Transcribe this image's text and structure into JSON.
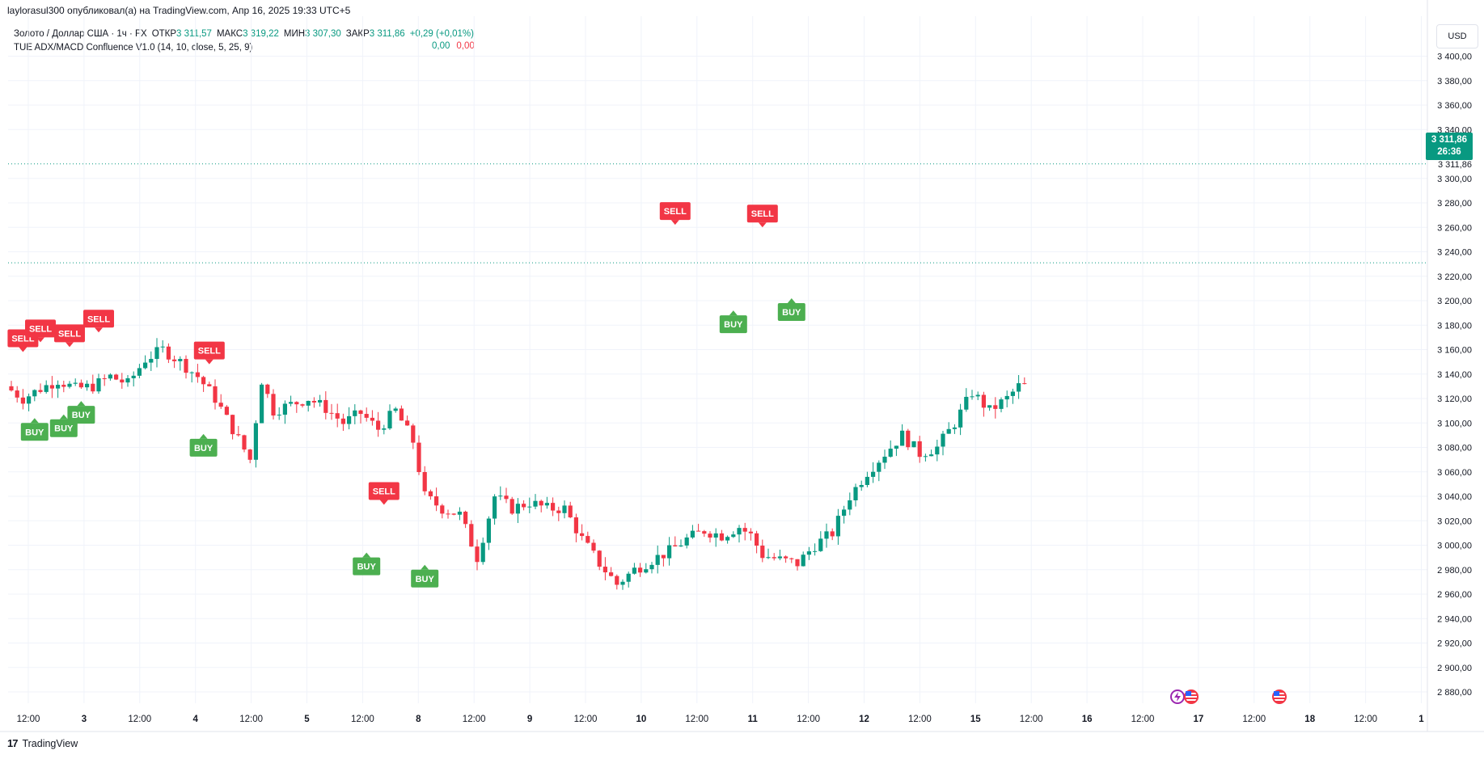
{
  "header": {
    "attribution": "laylorasul300 опубликовал(а) на TradingView.com, Апр 16, 2025 19:33 UTC+5"
  },
  "legend": {
    "symbol": "Золото / Доллар США · 1ч · FX",
    "open_label": "ОТКР",
    "open_value": "3 311,57",
    "high_label": "МАКС",
    "high_value": "3 319,22",
    "low_label": "МИН",
    "low_value": "3 307,30",
    "close_label": "ЗАКР",
    "close_value": "3 311,86",
    "change": "+0,29 (+0,01%)",
    "indicator": "TUE ADX/MACD Confluence V1.0 (14, 10, close, 5, 25, 9)",
    "indicator_val1": "0,00",
    "indicator_val2": "0,00"
  },
  "price_scale": {
    "currency": "USD",
    "last_price": "3 311,86",
    "countdown": "26:36"
  },
  "footer": {
    "brand": "TradingView"
  },
  "colors": {
    "up": "#089981",
    "down": "#f23645",
    "buy": "#4caf50",
    "sell": "#f23645",
    "grid": "#f0f3fa",
    "dotted_line": "#089981"
  },
  "icons": [
    "lightning-event-icon",
    "us-flag-event-icon"
  ],
  "chart_data": {
    "type": "candlestick",
    "symbol": "XAUUSD",
    "timeframe": "1h",
    "ylim": [
      2870,
      3420
    ],
    "y_ticks": [
      2880,
      2900,
      2920,
      2940,
      2960,
      2980,
      3000,
      3020,
      3040,
      3060,
      3080,
      3100,
      3120,
      3140,
      3160,
      3180,
      3200,
      3220,
      3240,
      3260,
      3280,
      3300,
      3340,
      3360,
      3380,
      3400
    ],
    "y_tick_labels": [
      "2 880,00",
      "2 900,00",
      "2 920,00",
      "2 940,00",
      "2 960,00",
      "2 980,00",
      "3 000,00",
      "3 020,00",
      "3 040,00",
      "3 060,00",
      "3 080,00",
      "3 100,00",
      "3 120,00",
      "3 140,00",
      "3 160,00",
      "3 180,00",
      "3 200,00",
      "3 220,00",
      "3 240,00",
      "3 260,00",
      "3 280,00",
      "3 300,00",
      "3 340,00",
      "3 360,00",
      "3 380,00",
      "3 400,00"
    ],
    "last_price_label": "3 311,86",
    "x_labels": [
      "12:00",
      "3",
      "12:00",
      "4",
      "12:00",
      "5",
      "12:00",
      "8",
      "12:00",
      "9",
      "12:00",
      "10",
      "12:00",
      "11",
      "12:00",
      "12",
      "12:00",
      "15",
      "12:00",
      "16",
      "12:00",
      "17",
      "12:00",
      "18",
      "12:00",
      "1"
    ],
    "x_label_bold": [
      false,
      true,
      false,
      true,
      false,
      true,
      false,
      true,
      false,
      true,
      false,
      true,
      false,
      true,
      false,
      true,
      false,
      true,
      false,
      true,
      false,
      true,
      false,
      true,
      false,
      true
    ],
    "x_range": [
      0,
      175
    ],
    "x_label_index": [
      5,
      19,
      33,
      47,
      61,
      75,
      89,
      103,
      117,
      131,
      145,
      159,
      173,
      187,
      201,
      215,
      229,
      243,
      257,
      271,
      285,
      299,
      313,
      327,
      341,
      355
    ],
    "dotted_levels": [
      3311.86,
      3231
    ],
    "path_anchors": [
      [
        0,
        3130
      ],
      [
        3,
        3120
      ],
      [
        6,
        3128
      ],
      [
        9,
        3135
      ],
      [
        12,
        3128
      ],
      [
        15,
        3130
      ],
      [
        18,
        3138
      ],
      [
        21,
        3132
      ],
      [
        24,
        3152
      ],
      [
        27,
        3160
      ],
      [
        30,
        3150
      ],
      [
        33,
        3138
      ],
      [
        36,
        3120
      ],
      [
        39,
        3095
      ],
      [
        42,
        3070
      ],
      [
        44,
        3135
      ],
      [
        46,
        3110
      ],
      [
        49,
        3115
      ],
      [
        52,
        3120
      ],
      [
        55,
        3112
      ],
      [
        58,
        3100
      ],
      [
        61,
        3108
      ],
      [
        64,
        3095
      ],
      [
        67,
        3110
      ],
      [
        70,
        3085
      ],
      [
        72,
        3040
      ],
      [
        75,
        3030
      ],
      [
        78,
        3025
      ],
      [
        81,
        2990
      ],
      [
        84,
        3040
      ],
      [
        87,
        3030
      ],
      [
        90,
        3035
      ],
      [
        93,
        3030
      ],
      [
        96,
        3030
      ],
      [
        99,
        3005
      ],
      [
        102,
        2985
      ],
      [
        105,
        2968
      ],
      [
        108,
        2980
      ],
      [
        111,
        2988
      ],
      [
        114,
        2995
      ],
      [
        117,
        3005
      ],
      [
        120,
        3012
      ],
      [
        123,
        3008
      ],
      [
        126,
        3015
      ],
      [
        128,
        3008
      ],
      [
        130,
        2992
      ],
      [
        133,
        2988
      ],
      [
        136,
        2985
      ],
      [
        139,
        3000
      ],
      [
        142,
        3010
      ],
      [
        145,
        3040
      ],
      [
        148,
        3060
      ],
      [
        151,
        3075
      ],
      [
        154,
        3090
      ],
      [
        157,
        3075
      ],
      [
        160,
        3080
      ],
      [
        163,
        3100
      ],
      [
        166,
        3125
      ],
      [
        169,
        3110
      ],
      [
        172,
        3120
      ],
      [
        174,
        3130
      ]
    ],
    "signals": [
      {
        "label": "SELL",
        "type": "sell",
        "index": 2,
        "price": 3162
      },
      {
        "label": "SELL",
        "type": "sell",
        "index": 5,
        "price": 3170
      },
      {
        "label": "SELL",
        "type": "sell",
        "index": 10,
        "price": 3166
      },
      {
        "label": "SELL",
        "type": "sell",
        "index": 15,
        "price": 3178
      },
      {
        "label": "SELL",
        "type": "sell",
        "index": 34,
        "price": 3152
      },
      {
        "label": "SELL",
        "type": "sell",
        "index": 64,
        "price": 3037
      },
      {
        "label": "SELL",
        "type": "sell",
        "index": 114,
        "price": 3266
      },
      {
        "label": "SELL",
        "type": "sell",
        "index": 129,
        "price": 3264
      },
      {
        "label": "BUY",
        "type": "buy",
        "index": 4,
        "price": 3100
      },
      {
        "label": "BUY",
        "type": "buy",
        "index": 9,
        "price": 3103
      },
      {
        "label": "BUY",
        "type": "buy",
        "index": 12,
        "price": 3114
      },
      {
        "label": "BUY",
        "type": "buy",
        "index": 33,
        "price": 3087
      },
      {
        "label": "BUY",
        "type": "buy",
        "index": 61,
        "price": 2990
      },
      {
        "label": "BUY",
        "type": "buy",
        "index": 71,
        "price": 2980
      },
      {
        "label": "BUY",
        "type": "buy",
        "index": 124,
        "price": 3188
      },
      {
        "label": "BUY",
        "type": "buy",
        "index": 134,
        "price": 3198
      }
    ]
  }
}
